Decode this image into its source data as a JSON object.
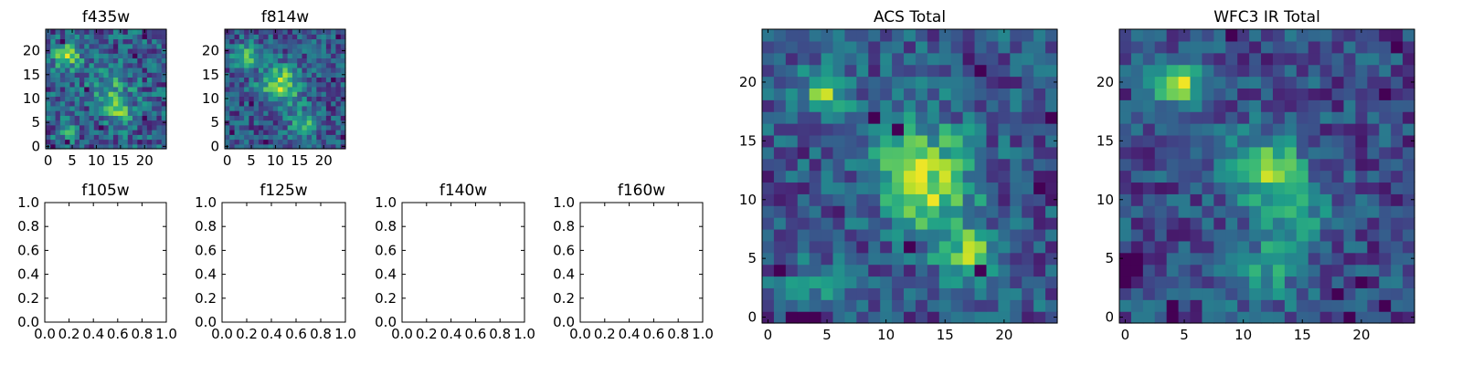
{
  "chart_data": [
    {
      "type": "heatmap",
      "title": "f435w",
      "shape": [
        25,
        25
      ],
      "xticks": [
        "0",
        "5",
        "10",
        "15",
        "20"
      ],
      "yticks": [
        "0",
        "5",
        "10",
        "15",
        "20"
      ],
      "xlim": [
        -0.5,
        24.5
      ],
      "ylim": [
        -0.5,
        24.5
      ],
      "colormap": "viridis",
      "features": [
        {
          "x": 4,
          "y": 19,
          "amp": 0.3,
          "sigma": 2.0
        },
        {
          "x": 13,
          "y": 12,
          "amp": 0.18,
          "sigma": 3.0
        },
        {
          "x": 15,
          "y": 7,
          "amp": 0.2,
          "sigma": 2.2
        },
        {
          "x": 4,
          "y": 3,
          "amp": 0.15,
          "sigma": 1.5
        }
      ],
      "dark_pixels": [
        [
          20,
          23
        ],
        [
          3,
          22
        ],
        [
          8,
          12
        ],
        [
          18,
          19
        ],
        [
          11,
          4
        ],
        [
          1,
          0
        ],
        [
          4,
          1
        ],
        [
          20,
          6
        ]
      ]
    },
    {
      "type": "heatmap",
      "title": "f814w",
      "shape": [
        25,
        25
      ],
      "xticks": [
        "0",
        "5",
        "10",
        "15",
        "20"
      ],
      "yticks": [
        "0",
        "5",
        "10",
        "15",
        "20"
      ],
      "xlim": [
        -0.5,
        24.5
      ],
      "ylim": [
        -0.5,
        24.5
      ],
      "colormap": "viridis",
      "features": [
        {
          "x": 4,
          "y": 19,
          "amp": 0.3,
          "sigma": 1.8
        },
        {
          "x": 11,
          "y": 13,
          "amp": 0.42,
          "sigma": 2.8
        },
        {
          "x": 16,
          "y": 5,
          "amp": 0.25,
          "sigma": 2.2
        }
      ],
      "dark_pixels": [
        [
          23,
          23
        ],
        [
          1,
          3
        ],
        [
          8,
          1
        ],
        [
          22,
          14
        ],
        [
          5,
          9
        ],
        [
          24,
          2
        ]
      ]
    },
    {
      "type": "line",
      "title": "f105w",
      "xlim": [
        0.0,
        1.0
      ],
      "ylim": [
        0.0,
        1.0
      ],
      "xticks": [
        "0.0",
        "0.2",
        "0.4",
        "0.6",
        "0.8",
        "1.0"
      ],
      "yticks": [
        "0.0",
        "0.2",
        "0.4",
        "0.6",
        "0.8",
        "1.0"
      ],
      "series": []
    },
    {
      "type": "line",
      "title": "f125w",
      "xlim": [
        0.0,
        1.0
      ],
      "ylim": [
        0.0,
        1.0
      ],
      "xticks": [
        "0.0",
        "0.2",
        "0.4",
        "0.6",
        "0.8",
        "1.0"
      ],
      "yticks": [
        "0.0",
        "0.2",
        "0.4",
        "0.6",
        "0.8",
        "1.0"
      ],
      "series": []
    },
    {
      "type": "line",
      "title": "f140w",
      "xlim": [
        0.0,
        1.0
      ],
      "ylim": [
        0.0,
        1.0
      ],
      "xticks": [
        "0.0",
        "0.2",
        "0.4",
        "0.6",
        "0.8",
        "1.0"
      ],
      "yticks": [
        "0.0",
        "0.2",
        "0.4",
        "0.6",
        "0.8",
        "1.0"
      ],
      "series": []
    },
    {
      "type": "line",
      "title": "f160w",
      "xlim": [
        0.0,
        1.0
      ],
      "ylim": [
        0.0,
        1.0
      ],
      "xticks": [
        "0.0",
        "0.2",
        "0.4",
        "0.6",
        "0.8",
        "1.0"
      ],
      "yticks": [
        "0.0",
        "0.2",
        "0.4",
        "0.6",
        "0.8",
        "1.0"
      ],
      "series": []
    },
    {
      "type": "heatmap",
      "title": "ACS Total",
      "shape": [
        25,
        25
      ],
      "xticks": [
        "0",
        "5",
        "10",
        "15",
        "20"
      ],
      "yticks": [
        "0",
        "5",
        "10",
        "15",
        "20"
      ],
      "xlim": [
        -0.5,
        24.5
      ],
      "ylim": [
        -0.5,
        24.5
      ],
      "colormap": "viridis",
      "features": [
        {
          "x": 5,
          "y": 19.5,
          "amp": 0.38,
          "sigma": 1.5
        },
        {
          "x": 13,
          "y": 13,
          "amp": 0.32,
          "sigma": 3.0
        },
        {
          "x": 17,
          "y": 5,
          "amp": 0.38,
          "sigma": 1.8
        },
        {
          "x": 14,
          "y": 10,
          "amp": 0.22,
          "sigma": 2.5
        },
        {
          "x": 4,
          "y": 3,
          "amp": 0.18,
          "sigma": 1.5
        }
      ],
      "dark_pixels": [
        [
          18,
          21
        ],
        [
          9,
          17
        ],
        [
          24,
          17
        ],
        [
          23,
          11
        ],
        [
          1,
          4
        ],
        [
          18,
          4
        ],
        [
          12,
          6
        ],
        [
          2,
          0
        ],
        [
          3,
          0
        ],
        [
          4,
          0
        ],
        [
          11,
          16
        ]
      ]
    },
    {
      "type": "heatmap",
      "title": "WFC3 IR Total",
      "shape": [
        25,
        25
      ],
      "xticks": [
        "0",
        "5",
        "10",
        "15",
        "20"
      ],
      "yticks": [
        "0",
        "5",
        "10",
        "15",
        "20"
      ],
      "xlim": [
        -0.5,
        24.5
      ],
      "ylim": [
        -0.5,
        24.5
      ],
      "colormap": "viridis",
      "features": [
        {
          "x": 4.5,
          "y": 20,
          "amp": 0.5,
          "sigma": 1.4
        },
        {
          "x": 12,
          "y": 12.5,
          "amp": 0.45,
          "sigma": 2.3
        },
        {
          "x": 15,
          "y": 9,
          "amp": 0.22,
          "sigma": 1.8
        },
        {
          "x": 12,
          "y": 4,
          "amp": 0.28,
          "sigma": 2.0
        }
      ],
      "dark_pixels": [
        [
          0,
          4
        ],
        [
          0,
          5
        ],
        [
          1,
          4
        ],
        [
          1,
          5
        ],
        [
          0,
          3
        ],
        [
          4,
          1
        ],
        [
          4,
          0
        ],
        [
          18,
          2
        ],
        [
          20,
          3
        ],
        [
          23,
          23
        ],
        [
          9,
          24
        ],
        [
          22,
          19
        ],
        [
          19,
          0
        ],
        [
          22,
          1
        ]
      ]
    }
  ]
}
